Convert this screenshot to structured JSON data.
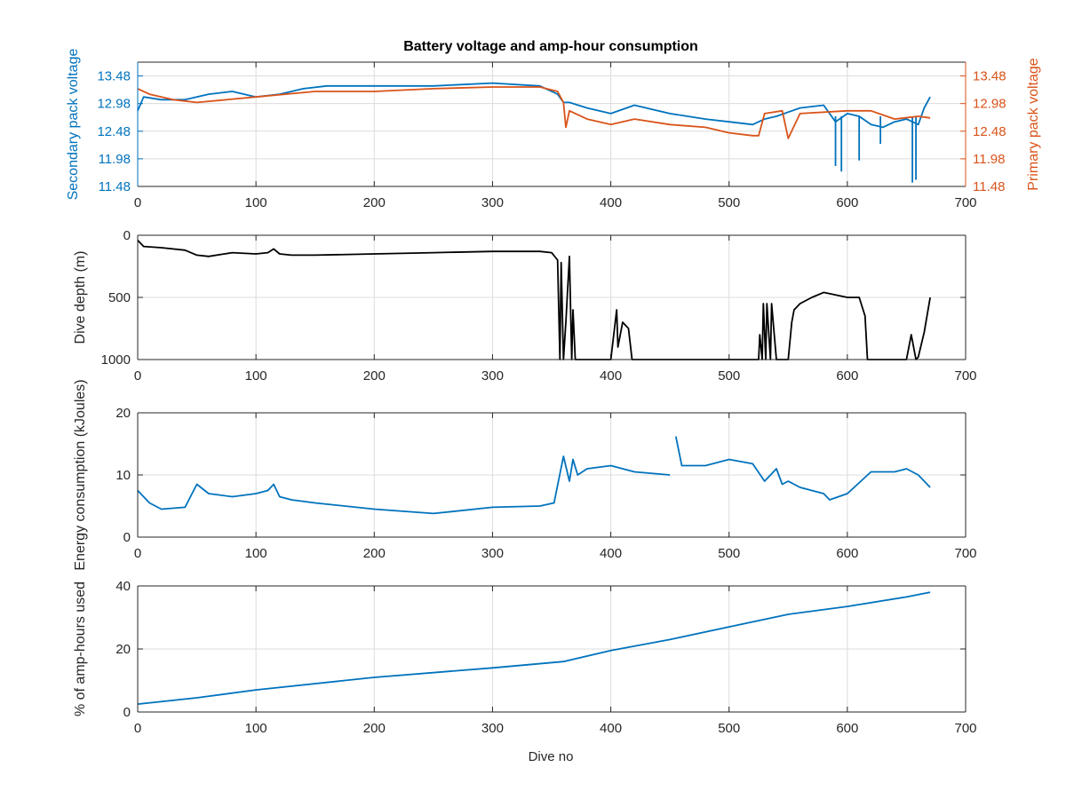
{
  "figure": {
    "title": "Battery voltage and amp-hour consumption",
    "xlabel_bottom": "Dive no"
  },
  "colors": {
    "blue": "#0072BD",
    "orange": "#D95319",
    "black": "#000000",
    "grid": "#dcdcdc",
    "axis": "#262626"
  },
  "chart_data": [
    {
      "type": "line",
      "title": "Battery voltage and amp-hour consumption",
      "xlabel": "",
      "ylabel": "Secondary pack voltage",
      "ylabel_right": "Primary pack voltage",
      "xlim": [
        0,
        700
      ],
      "ylim": [
        11.48,
        13.73
      ],
      "ylim_right": [
        11.48,
        13.73
      ],
      "xticks": [
        "0",
        "100",
        "200",
        "300",
        "400",
        "500",
        "600",
        "700"
      ],
      "yticks": [
        "11.48",
        "11.98",
        "12.48",
        "12.98",
        "13.48"
      ],
      "yticks_right": [
        "11.48",
        "11.98",
        "12.48",
        "12.98",
        "13.48"
      ],
      "grid": true,
      "series": [
        {
          "color": "#0072BD",
          "axis": "left",
          "x": [
            0,
            5,
            20,
            40,
            60,
            80,
            100,
            120,
            140,
            160,
            200,
            250,
            300,
            340,
            355,
            360,
            365,
            380,
            400,
            420,
            450,
            480,
            500,
            520,
            530,
            540,
            560,
            580,
            590,
            600,
            610,
            620,
            630,
            640,
            650,
            660,
            665,
            670
          ],
          "y": [
            12.85,
            13.1,
            13.05,
            13.05,
            13.15,
            13.2,
            13.1,
            13.15,
            13.25,
            13.3,
            13.3,
            13.3,
            13.35,
            13.3,
            13.15,
            13.0,
            13.0,
            12.9,
            12.8,
            12.95,
            12.8,
            12.7,
            12.65,
            12.6,
            12.7,
            12.75,
            12.9,
            12.95,
            12.65,
            12.8,
            12.75,
            12.6,
            12.55,
            12.65,
            12.7,
            12.6,
            12.9,
            13.1
          ],
          "spikes": [
            [
              590,
              11.85
            ],
            [
              595,
              11.75
            ],
            [
              610,
              11.95
            ],
            [
              628,
              12.25
            ],
            [
              655,
              11.55
            ],
            [
              658,
              11.6
            ]
          ]
        },
        {
          "color": "#D95319",
          "axis": "right",
          "x": [
            0,
            10,
            30,
            50,
            100,
            150,
            200,
            250,
            300,
            340,
            355,
            360,
            362,
            365,
            380,
            400,
            420,
            450,
            480,
            500,
            520,
            525,
            530,
            545,
            550,
            560,
            600,
            620,
            640,
            660,
            670
          ],
          "y": [
            13.25,
            13.15,
            13.05,
            13.0,
            13.1,
            13.2,
            13.2,
            13.25,
            13.28,
            13.28,
            13.2,
            13.0,
            12.55,
            12.85,
            12.7,
            12.6,
            12.7,
            12.6,
            12.55,
            12.45,
            12.4,
            12.4,
            12.8,
            12.85,
            12.35,
            12.8,
            12.85,
            12.85,
            12.7,
            12.75,
            12.72
          ]
        }
      ]
    },
    {
      "type": "line",
      "xlabel": "",
      "ylabel": "Dive depth (m)",
      "xlim": [
        0,
        700
      ],
      "ylim": [
        0,
        1000
      ],
      "y_reversed": true,
      "xticks": [
        "0",
        "100",
        "200",
        "300",
        "400",
        "500",
        "600",
        "700"
      ],
      "yticks": [
        "0",
        "500",
        "1000"
      ],
      "grid": true,
      "series": [
        {
          "color": "#000000",
          "x": [
            0,
            5,
            20,
            40,
            50,
            60,
            80,
            100,
            110,
            115,
            120,
            130,
            150,
            200,
            250,
            300,
            340,
            350,
            355,
            357,
            358,
            360,
            362,
            365,
            367,
            368,
            370,
            400,
            405,
            406,
            410,
            415,
            418,
            420,
            450,
            500,
            525,
            526,
            528,
            529,
            531,
            532,
            535,
            536,
            540,
            550,
            553,
            555,
            560,
            570,
            580,
            600,
            610,
            615,
            617,
            620,
            650,
            654,
            658,
            660,
            665,
            670
          ],
          "y": [
            40,
            90,
            100,
            120,
            160,
            170,
            140,
            150,
            140,
            110,
            150,
            160,
            160,
            150,
            140,
            130,
            130,
            140,
            200,
            1000,
            220,
            1000,
            700,
            170,
            1000,
            600,
            1000,
            1000,
            600,
            900,
            700,
            750,
            1000,
            1000,
            1000,
            1000,
            1000,
            800,
            1000,
            550,
            1000,
            550,
            1000,
            550,
            1000,
            1000,
            700,
            600,
            550,
            500,
            460,
            500,
            500,
            650,
            1000,
            1000,
            1000,
            800,
            1000,
            980,
            780,
            500
          ]
        }
      ]
    },
    {
      "type": "line",
      "xlabel": "",
      "ylabel": "Energy consumption (kJoules)",
      "xlim": [
        0,
        700
      ],
      "ylim": [
        0,
        20
      ],
      "xticks": [
        "0",
        "100",
        "200",
        "300",
        "400",
        "500",
        "600",
        "700"
      ],
      "yticks": [
        "0",
        "10",
        "20"
      ],
      "grid": true,
      "series": [
        {
          "color": "#0072BD",
          "x": [
            0,
            10,
            20,
            40,
            50,
            60,
            80,
            100,
            110,
            115,
            120,
            130,
            150,
            200,
            250,
            300,
            340,
            352,
            360,
            365,
            368,
            372,
            380,
            400,
            420,
            450
          ],
          "y": [
            7.5,
            5.5,
            4.5,
            4.8,
            8.5,
            7.0,
            6.5,
            7.0,
            7.5,
            8.5,
            6.5,
            6.0,
            5.5,
            4.5,
            3.8,
            4.8,
            5.0,
            5.5,
            13.0,
            9.0,
            12.5,
            10.0,
            11.0,
            11.5,
            10.5,
            10.0
          ]
        },
        {
          "color": "#0072BD",
          "x": [
            455,
            460,
            480,
            500,
            520,
            530,
            540,
            545,
            550,
            560,
            570,
            580,
            585,
            600,
            620,
            640,
            650,
            660,
            670
          ],
          "y": [
            16.2,
            11.5,
            11.5,
            12.5,
            11.8,
            9.0,
            11.0,
            8.5,
            9.0,
            8.0,
            7.5,
            7.0,
            6.0,
            7.0,
            10.5,
            10.5,
            11.0,
            10.0,
            8.0
          ]
        }
      ]
    },
    {
      "type": "line",
      "xlabel": "Dive no",
      "ylabel": "% of amp-hours used",
      "xlim": [
        0,
        700
      ],
      "ylim": [
        0,
        40
      ],
      "xticks": [
        "0",
        "100",
        "200",
        "300",
        "400",
        "500",
        "600",
        "700"
      ],
      "yticks": [
        "0",
        "20",
        "40"
      ],
      "grid": true,
      "series": [
        {
          "color": "#0072BD",
          "x": [
            0,
            50,
            100,
            200,
            300,
            360,
            400,
            450,
            500,
            550,
            600,
            650,
            670
          ],
          "y": [
            2.5,
            4.5,
            7,
            11,
            14,
            16,
            19.5,
            23,
            27,
            31,
            33.5,
            36.5,
            38
          ]
        }
      ]
    }
  ]
}
